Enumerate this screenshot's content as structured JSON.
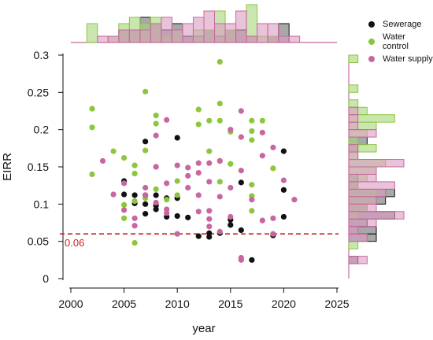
{
  "chart_data": {
    "type": "scatter",
    "xlabel": "year",
    "ylabel": "EIRR",
    "xlim": [
      2000,
      2025
    ],
    "ylim": [
      0,
      0.3
    ],
    "x_ticks": [
      "2000",
      "2005",
      "2010",
      "2015",
      "2020",
      "2025"
    ],
    "y_ticks": [
      "0",
      "0.05",
      "0.1",
      "0.15",
      "0.2",
      "0.25",
      "0.3"
    ],
    "x_tick_values": [
      2000,
      2005,
      2010,
      2015,
      2020,
      2025
    ],
    "y_tick_values": [
      0,
      0.05,
      0.1,
      0.15,
      0.2,
      0.25,
      0.3
    ],
    "reference_line": {
      "y": 0.06,
      "label": "0.06",
      "color": "#cc2222",
      "style": "dashed"
    },
    "legend_position": "top-right",
    "marginal_histograms": true,
    "grid": false,
    "series": [
      {
        "name": "Sewerage",
        "color": "#111111",
        "hist_color": "#6e6e6e",
        "points": [
          [
            2005,
            0.131
          ],
          [
            2005,
            0.113
          ],
          [
            2006,
            0.112
          ],
          [
            2006,
            0.101
          ],
          [
            2007,
            0.184
          ],
          [
            2007,
            0.112
          ],
          [
            2007,
            0.1
          ],
          [
            2007,
            0.087
          ],
          [
            2008,
            0.112
          ],
          [
            2008,
            0.098
          ],
          [
            2008,
            0.093
          ],
          [
            2009,
            0.108
          ],
          [
            2009,
            0.083
          ],
          [
            2010,
            0.189
          ],
          [
            2010,
            0.108
          ],
          [
            2010,
            0.084
          ],
          [
            2011,
            0.082
          ],
          [
            2012,
            0.057
          ],
          [
            2013,
            0.061
          ],
          [
            2013,
            0.056
          ],
          [
            2014,
            0.061
          ],
          [
            2015,
            0.079
          ],
          [
            2015,
            0.072
          ],
          [
            2016,
            0.129
          ],
          [
            2016,
            0.065
          ],
          [
            2017,
            0.025
          ],
          [
            2019,
            0.058
          ],
          [
            2020,
            0.171
          ],
          [
            2020,
            0.119
          ],
          [
            2020,
            0.083
          ]
        ]
      },
      {
        "name": "Water control",
        "color": "#8cc63f",
        "hist_color": "#a6d67a",
        "points": [
          [
            2002,
            0.228
          ],
          [
            2002,
            0.203
          ],
          [
            2002,
            0.14
          ],
          [
            2004,
            0.171
          ],
          [
            2005,
            0.162
          ],
          [
            2005,
            0.099
          ],
          [
            2005,
            0.081
          ],
          [
            2006,
            0.152
          ],
          [
            2006,
            0.141
          ],
          [
            2006,
            0.104
          ],
          [
            2006,
            0.048
          ],
          [
            2007,
            0.251
          ],
          [
            2007,
            0.172
          ],
          [
            2007,
            0.108
          ],
          [
            2008,
            0.219
          ],
          [
            2008,
            0.208
          ],
          [
            2008,
            0.15
          ],
          [
            2008,
            0.12
          ],
          [
            2009,
            0.106
          ],
          [
            2010,
            0.131
          ],
          [
            2010,
            0.112
          ],
          [
            2012,
            0.227
          ],
          [
            2012,
            0.207
          ],
          [
            2013,
            0.212
          ],
          [
            2013,
            0.171
          ],
          [
            2014,
            0.291
          ],
          [
            2014,
            0.235
          ],
          [
            2014,
            0.212
          ],
          [
            2014,
            0.158
          ],
          [
            2014,
            0.13
          ],
          [
            2015,
            0.197
          ],
          [
            2015,
            0.154
          ],
          [
            2017,
            0.212
          ],
          [
            2017,
            0.198
          ],
          [
            2017,
            0.186
          ],
          [
            2017,
            0.126
          ],
          [
            2017,
            0.111
          ],
          [
            2017,
            0.091
          ],
          [
            2018,
            0.212
          ],
          [
            2019,
            0.148
          ]
        ]
      },
      {
        "name": "Water supply",
        "color": "#c8679f",
        "hist_color": "#d99bbf",
        "points": [
          [
            2003,
            0.158
          ],
          [
            2004,
            0.113
          ],
          [
            2005,
            0.128
          ],
          [
            2005,
            0.092
          ],
          [
            2006,
            0.081
          ],
          [
            2006,
            0.071
          ],
          [
            2007,
            0.122
          ],
          [
            2007,
            0.112
          ],
          [
            2008,
            0.192
          ],
          [
            2008,
            0.15
          ],
          [
            2008,
            0.102
          ],
          [
            2009,
            0.213
          ],
          [
            2009,
            0.128
          ],
          [
            2009,
            0.093
          ],
          [
            2009,
            0.088
          ],
          [
            2010,
            0.152
          ],
          [
            2010,
            0.06
          ],
          [
            2011,
            0.149
          ],
          [
            2011,
            0.138
          ],
          [
            2011,
            0.122
          ],
          [
            2012,
            0.155
          ],
          [
            2012,
            0.142
          ],
          [
            2012,
            0.112
          ],
          [
            2012,
            0.09
          ],
          [
            2013,
            0.155
          ],
          [
            2013,
            0.13
          ],
          [
            2013,
            0.091
          ],
          [
            2013,
            0.08
          ],
          [
            2013,
            0.07
          ],
          [
            2014,
            0.158
          ],
          [
            2014,
            0.11
          ],
          [
            2014,
            0.063
          ],
          [
            2015,
            0.2
          ],
          [
            2015,
            0.122
          ],
          [
            2015,
            0.083
          ],
          [
            2016,
            0.225
          ],
          [
            2016,
            0.19
          ],
          [
            2016,
            0.145
          ],
          [
            2016,
            0.028
          ],
          [
            2016,
            0.025
          ],
          [
            2017,
            0.106
          ],
          [
            2018,
            0.196
          ],
          [
            2018,
            0.165
          ],
          [
            2018,
            0.078
          ],
          [
            2019,
            0.176
          ],
          [
            2019,
            0.081
          ],
          [
            2019,
            0.06
          ],
          [
            2020,
            0.132
          ],
          [
            2021,
            0.106
          ]
        ]
      }
    ]
  }
}
